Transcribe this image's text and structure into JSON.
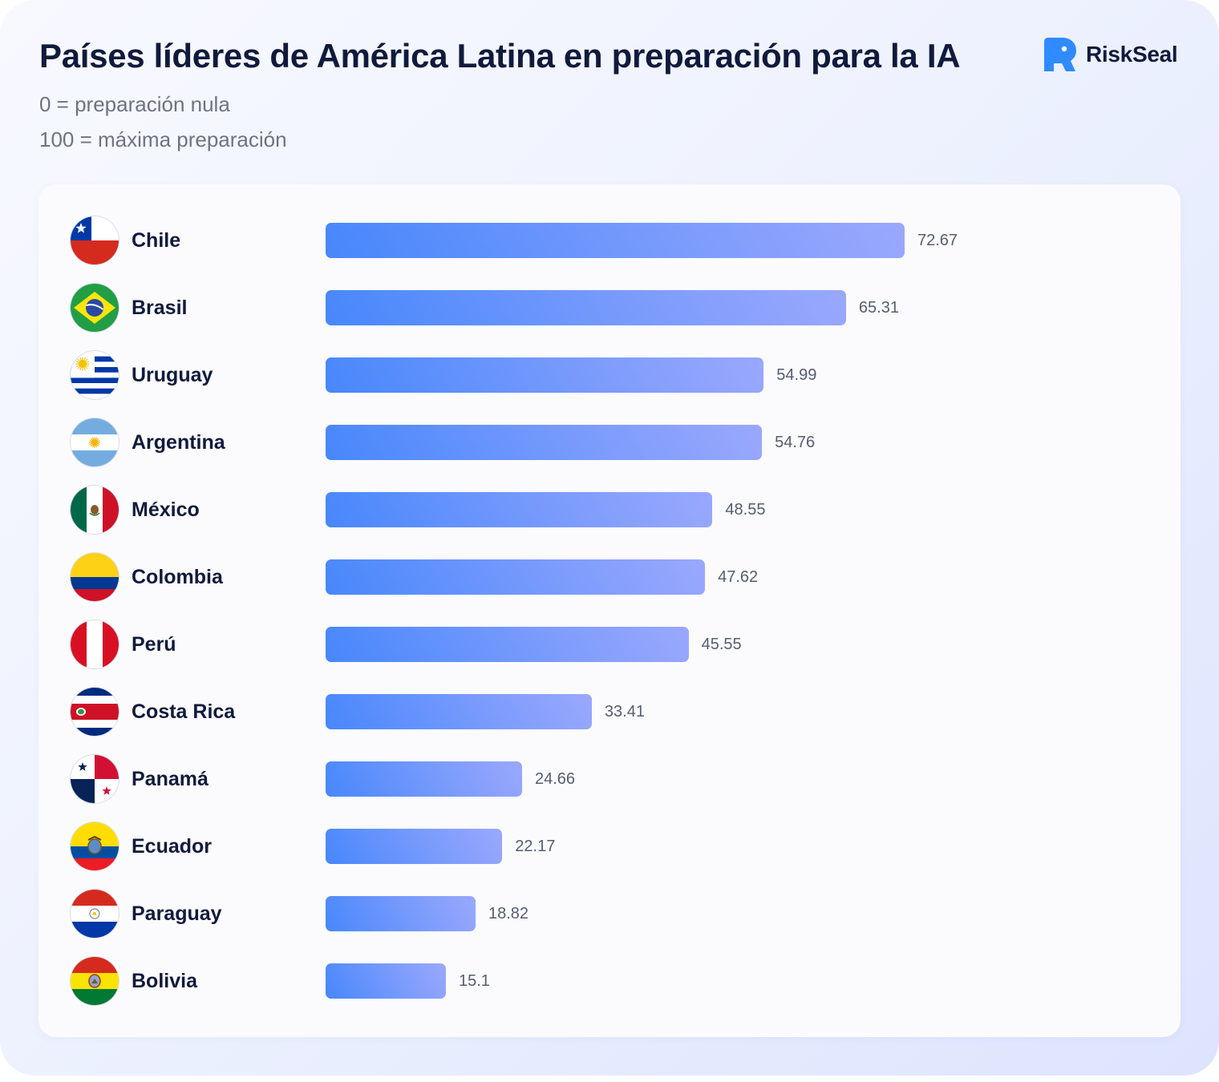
{
  "header": {
    "title": "Países líderes de América Latina en preparación para la IA",
    "subtitle_1": "0 = preparación nula",
    "subtitle_2": "100 = máxima preparación"
  },
  "brand": {
    "name": "RiskSeal",
    "icon": "riskseal-logo-icon",
    "color": "#2f8bff"
  },
  "colors": {
    "bar_start": "#4787fb",
    "bar_end": "#9aa8fd",
    "title": "#101a3c",
    "value_text": "#555d72"
  },
  "chart_data": {
    "type": "bar",
    "orientation": "horizontal",
    "title": "Países líderes de América Latina en preparación para la IA",
    "subtitle": [
      "0 = preparación nula",
      "100 = máxima preparación"
    ],
    "xlabel": "",
    "ylabel": "",
    "xlim": [
      0,
      100
    ],
    "grid": false,
    "legend": "none",
    "categories": [
      "Chile",
      "Brasil",
      "Uruguay",
      "Argentina",
      "México",
      "Colombia",
      "Perú",
      "Costa Rica",
      "Panamá",
      "Ecuador",
      "Paraguay",
      "Bolivia"
    ],
    "values": [
      72.67,
      65.31,
      54.99,
      54.76,
      48.55,
      47.62,
      45.55,
      33.41,
      24.66,
      22.17,
      18.82,
      15.1
    ],
    "value_labels": [
      "72.67",
      "65.31",
      "54.99",
      "54.76",
      "48.55",
      "47.62",
      "45.55",
      "33.41",
      "24.66",
      "22.17",
      "18.82",
      "15.1"
    ],
    "icons": [
      "flag-chile-icon",
      "flag-brazil-icon",
      "flag-uruguay-icon",
      "flag-argentina-icon",
      "flag-mexico-icon",
      "flag-colombia-icon",
      "flag-peru-icon",
      "flag-costa-rica-icon",
      "flag-panama-icon",
      "flag-ecuador-icon",
      "flag-paraguay-icon",
      "flag-bolivia-icon"
    ]
  }
}
